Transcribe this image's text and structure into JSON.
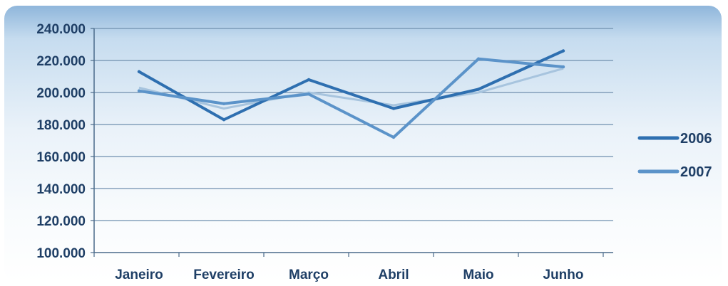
{
  "chart_data": {
    "type": "line",
    "title": "",
    "xlabel": "",
    "ylabel": "",
    "categories": [
      "Janeiro",
      "Fevereiro",
      "Março",
      "Abril",
      "Maio",
      "Junho"
    ],
    "ylim": [
      100000,
      240000
    ],
    "y_ticks": [
      100000,
      120000,
      140000,
      160000,
      180000,
      200000,
      220000,
      240000
    ],
    "y_tick_labels": [
      "100.000",
      "120.000",
      "140.000",
      "160.000",
      "180.000",
      "200.000",
      "220.000",
      "240.000"
    ],
    "grid": true,
    "legend_position": "right",
    "series": [
      {
        "name": "2006",
        "color": "#2e6fb0",
        "values": [
          213000,
          183000,
          208000,
          190000,
          202000,
          226000
        ]
      },
      {
        "name": "2007",
        "color": "#5b93c9",
        "values": [
          201000,
          193000,
          199000,
          172000,
          221000,
          216000
        ]
      }
    ],
    "extra_lines": [
      {
        "color": "#a7c4de",
        "values": [
          203000,
          190000,
          200000,
          192000,
          200000,
          215000
        ]
      }
    ]
  }
}
